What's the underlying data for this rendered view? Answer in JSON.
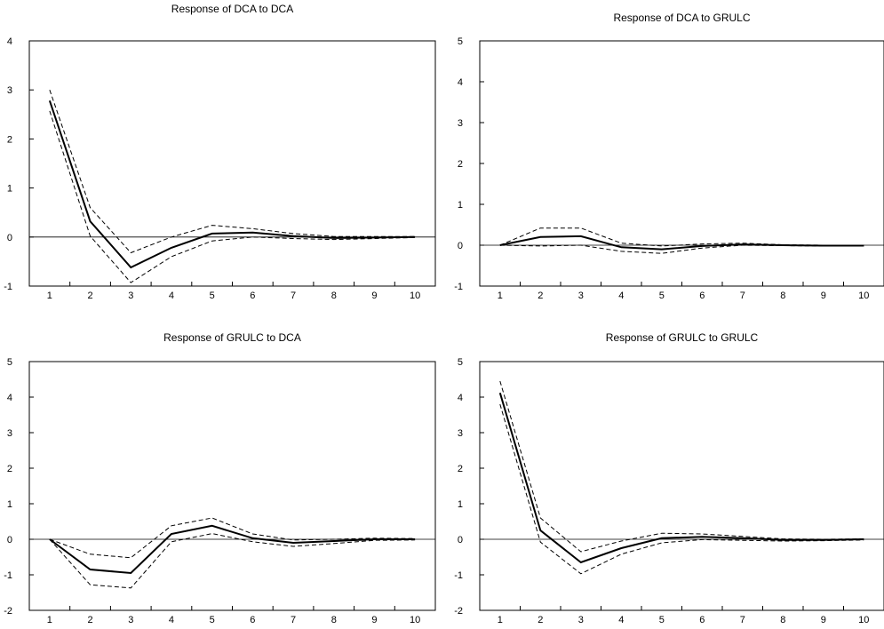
{
  "chart_data": [
    {
      "type": "line",
      "title": "Response of DCA to DCA",
      "x": [
        1,
        2,
        3,
        4,
        5,
        6,
        7,
        8,
        9,
        10
      ],
      "xticks": [
        "1",
        "2",
        "3",
        "4",
        "5",
        "6",
        "7",
        "8",
        "9",
        "10"
      ],
      "ylim": [
        -1,
        4
      ],
      "yticks": [
        "-1",
        "0",
        "1",
        "2",
        "3",
        "4"
      ],
      "series": [
        {
          "values": [
            2.78,
            0.32,
            -0.62,
            -0.22,
            0.07,
            0.09,
            0.02,
            -0.02,
            -0.01,
            0.0
          ],
          "style": "solid"
        },
        {
          "values": [
            3.0,
            0.6,
            -0.32,
            0.0,
            0.24,
            0.17,
            0.07,
            0.01,
            0.01,
            0.01
          ],
          "style": "dashed"
        },
        {
          "values": [
            2.57,
            0.02,
            -0.93,
            -0.4,
            -0.08,
            0.0,
            -0.03,
            -0.05,
            -0.03,
            -0.01
          ],
          "style": "dashed"
        }
      ],
      "grid": false
    },
    {
      "type": "line",
      "title": "Response of DCA to GRULC",
      "x": [
        1,
        2,
        3,
        4,
        5,
        6,
        7,
        8,
        9,
        10
      ],
      "xticks": [
        "1",
        "2",
        "3",
        "4",
        "5",
        "6",
        "7",
        "8",
        "9",
        "10"
      ],
      "ylim": [
        -1,
        5
      ],
      "yticks": [
        "-1",
        "0",
        "1",
        "2",
        "3",
        "4",
        "5"
      ],
      "series": [
        {
          "values": [
            0.0,
            0.2,
            0.22,
            -0.05,
            -0.1,
            -0.02,
            0.02,
            0.0,
            -0.01,
            -0.01
          ],
          "style": "solid"
        },
        {
          "values": [
            0.0,
            0.42,
            0.42,
            0.05,
            -0.02,
            0.03,
            0.05,
            0.01,
            0.0,
            0.0
          ],
          "style": "dashed"
        },
        {
          "values": [
            0.0,
            -0.02,
            0.0,
            -0.15,
            -0.2,
            -0.07,
            0.0,
            -0.01,
            -0.02,
            -0.02
          ],
          "style": "dashed"
        }
      ],
      "grid": false
    },
    {
      "type": "line",
      "title": "Response of GRULC to DCA",
      "x": [
        1,
        2,
        3,
        4,
        5,
        6,
        7,
        8,
        9,
        10
      ],
      "xticks": [
        "1",
        "2",
        "3",
        "4",
        "5",
        "6",
        "7",
        "8",
        "9",
        "10"
      ],
      "ylim": [
        -2,
        5
      ],
      "yticks": [
        "-2",
        "-1",
        "0",
        "1",
        "2",
        "3",
        "4",
        "5"
      ],
      "series": [
        {
          "values": [
            0.0,
            -0.85,
            -0.95,
            0.15,
            0.38,
            0.03,
            -0.1,
            -0.05,
            0.0,
            0.0
          ],
          "style": "solid"
        },
        {
          "values": [
            0.0,
            -0.42,
            -0.52,
            0.38,
            0.6,
            0.15,
            -0.02,
            0.0,
            0.03,
            0.02
          ],
          "style": "dashed"
        },
        {
          "values": [
            0.0,
            -1.28,
            -1.37,
            -0.07,
            0.16,
            -0.07,
            -0.2,
            -0.12,
            -0.03,
            -0.02
          ],
          "style": "dashed"
        }
      ],
      "grid": false
    },
    {
      "type": "line",
      "title": "Response of GRULC to GRULC",
      "x": [
        1,
        2,
        3,
        4,
        5,
        6,
        7,
        8,
        9,
        10
      ],
      "xticks": [
        "1",
        "2",
        "3",
        "4",
        "5",
        "6",
        "7",
        "8",
        "9",
        "10"
      ],
      "ylim": [
        -2,
        5
      ],
      "yticks": [
        "-2",
        "-1",
        "0",
        "1",
        "2",
        "3",
        "4",
        "5"
      ],
      "series": [
        {
          "values": [
            4.12,
            0.25,
            -0.65,
            -0.25,
            0.03,
            0.07,
            0.03,
            -0.02,
            -0.02,
            0.0
          ],
          "style": "solid"
        },
        {
          "values": [
            4.45,
            0.6,
            -0.35,
            -0.05,
            0.17,
            0.15,
            0.08,
            0.01,
            0.0,
            0.01
          ],
          "style": "dashed"
        },
        {
          "values": [
            3.8,
            -0.08,
            -0.97,
            -0.42,
            -0.1,
            -0.01,
            -0.03,
            -0.05,
            -0.04,
            -0.02
          ],
          "style": "dashed"
        }
      ],
      "grid": false
    }
  ]
}
